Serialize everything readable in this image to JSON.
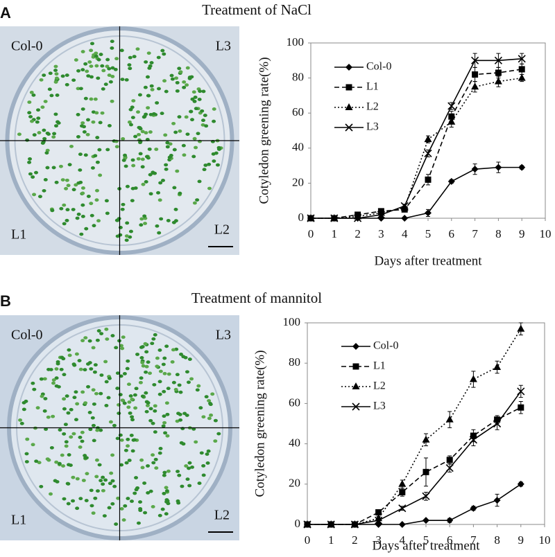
{
  "chart_data": [
    {
      "type": "line",
      "panel": "A",
      "title": "Treatment of NaCl",
      "photo_labels": [
        "Col-0",
        "L3",
        "L1",
        "L2"
      ],
      "x_label": "Days after treatment",
      "y_label": "Cotyledon greening rate(%)",
      "x": [
        0,
        1,
        2,
        3,
        4,
        5,
        6,
        7,
        8,
        9
      ],
      "xlim": [
        0,
        10
      ],
      "xticks": [
        0,
        1,
        2,
        3,
        4,
        5,
        6,
        7,
        8,
        9,
        10
      ],
      "ylim": [
        0,
        100
      ],
      "yticks": [
        0,
        20,
        40,
        60,
        80,
        100
      ],
      "series": [
        {
          "name": "Col-0",
          "color": "#000000",
          "marker": "diamond",
          "dash": "solid",
          "values": [
            0,
            0,
            0,
            0,
            0,
            3,
            21,
            28,
            29,
            29
          ],
          "errors": [
            0,
            0,
            0,
            0,
            0,
            2,
            1,
            3,
            3,
            1
          ]
        },
        {
          "name": "L1",
          "color": "#000000",
          "marker": "square",
          "dash": "dashed",
          "values": [
            0,
            0,
            2,
            4,
            5,
            22,
            58,
            82,
            83,
            85
          ],
          "errors": [
            0,
            0,
            1,
            1,
            1,
            3,
            3,
            4,
            3,
            3
          ]
        },
        {
          "name": "L2",
          "color": "#000000",
          "marker": "triangle",
          "dash": "dotted",
          "values": [
            0,
            0,
            1,
            3,
            6,
            45,
            55,
            75,
            78,
            80
          ],
          "errors": [
            0,
            0,
            1,
            1,
            1,
            2,
            3,
            3,
            3,
            2
          ]
        },
        {
          "name": "L3",
          "color": "#000000",
          "marker": "x",
          "dash": "solid",
          "values": [
            0,
            0,
            0,
            2,
            7,
            37,
            64,
            90,
            90,
            91
          ],
          "errors": [
            0,
            0,
            0,
            1,
            1,
            2,
            2,
            4,
            4,
            3
          ]
        }
      ]
    },
    {
      "type": "line",
      "panel": "B",
      "title": "Treatment of mannitol",
      "photo_labels": [
        "Col-0",
        "L3",
        "L1",
        "L2"
      ],
      "x_label": "Days after treatment",
      "y_label": "Cotyledon greening rate(%)",
      "x": [
        0,
        1,
        2,
        3,
        4,
        5,
        6,
        7,
        8,
        9
      ],
      "xlim": [
        0,
        10
      ],
      "xticks": [
        0,
        1,
        2,
        3,
        4,
        5,
        6,
        7,
        8,
        9,
        10
      ],
      "ylim": [
        0,
        100
      ],
      "yticks": [
        0,
        20,
        40,
        60,
        80,
        100
      ],
      "series": [
        {
          "name": "Col-0",
          "color": "#000000",
          "marker": "diamond",
          "dash": "solid",
          "values": [
            0,
            0,
            0,
            0,
            0,
            2,
            2,
            8,
            12,
            20
          ],
          "errors": [
            0,
            0,
            0,
            0,
            0,
            0,
            1,
            1,
            3,
            1
          ]
        },
        {
          "name": "L1",
          "color": "#000000",
          "marker": "square",
          "dash": "dashed",
          "values": [
            0,
            0,
            0,
            6,
            16,
            26,
            32,
            44,
            52,
            58
          ],
          "errors": [
            0,
            0,
            0,
            1,
            2,
            7,
            2,
            3,
            2,
            3
          ]
        },
        {
          "name": "L2",
          "color": "#000000",
          "marker": "triangle",
          "dash": "dotted",
          "values": [
            0,
            0,
            0,
            3,
            20,
            42,
            52,
            72,
            78,
            97
          ],
          "errors": [
            0,
            0,
            0,
            1,
            2,
            3,
            4,
            4,
            3,
            3
          ]
        },
        {
          "name": "L3",
          "color": "#000000",
          "marker": "x",
          "dash": "solid",
          "values": [
            0,
            0,
            0,
            2,
            8,
            14,
            28,
            42,
            50,
            66
          ],
          "errors": [
            0,
            0,
            0,
            1,
            1,
            2,
            2,
            3,
            3,
            3
          ]
        }
      ]
    }
  ]
}
